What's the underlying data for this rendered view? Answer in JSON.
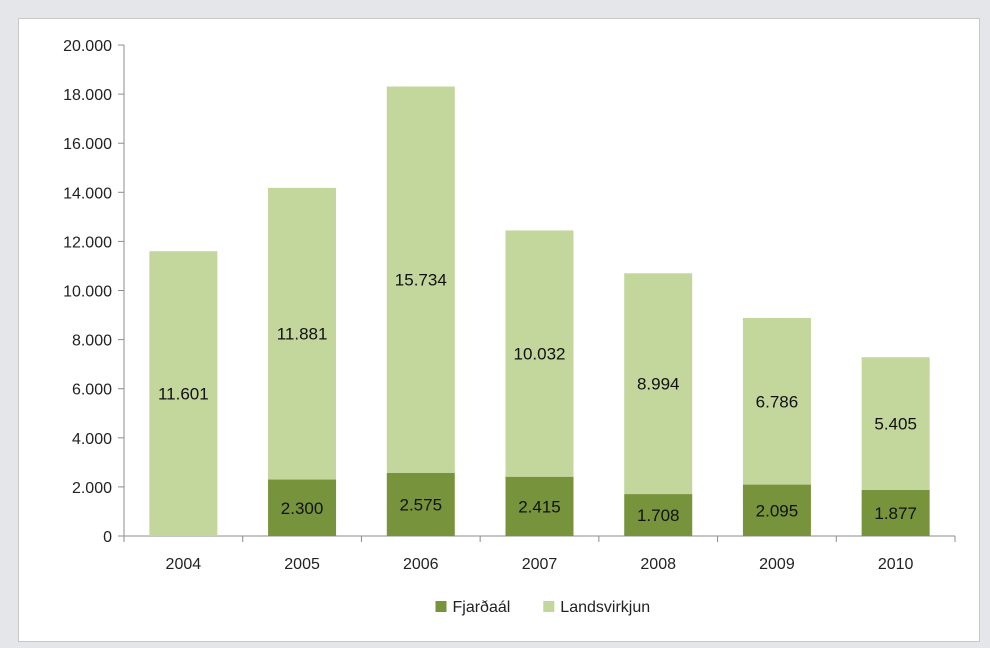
{
  "chart_data": {
    "type": "bar",
    "stacked": true,
    "title": "",
    "xlabel": "",
    "ylabel": "",
    "categories": [
      "2004",
      "2005",
      "2006",
      "2007",
      "2008",
      "2009",
      "2010"
    ],
    "ylim": [
      0,
      20000
    ],
    "yticks": [
      0,
      2000,
      4000,
      6000,
      8000,
      10000,
      12000,
      14000,
      16000,
      18000,
      20000
    ],
    "ytick_labels": [
      "0",
      "2.000",
      "4.000",
      "6.000",
      "8.000",
      "10.000",
      "12.000",
      "14.000",
      "16.000",
      "18.000",
      "20.000"
    ],
    "grid": false,
    "legend_position": "bottom",
    "series": [
      {
        "name": "Fjarðaál",
        "color": "#77933c",
        "values": [
          0,
          2300,
          2575,
          2415,
          1708,
          2095,
          1877
        ],
        "labels": [
          "",
          "2.300",
          "2.575",
          "2.415",
          "1.708",
          "2.095",
          "1.877"
        ]
      },
      {
        "name": "Landsvirkjun",
        "color": "#c3d69b",
        "values": [
          11601,
          11881,
          15734,
          10032,
          8994,
          6786,
          5405
        ],
        "labels": [
          "11.601",
          "11.881",
          "15.734",
          "10.032",
          "8.994",
          "6.786",
          "5.405"
        ]
      }
    ]
  }
}
